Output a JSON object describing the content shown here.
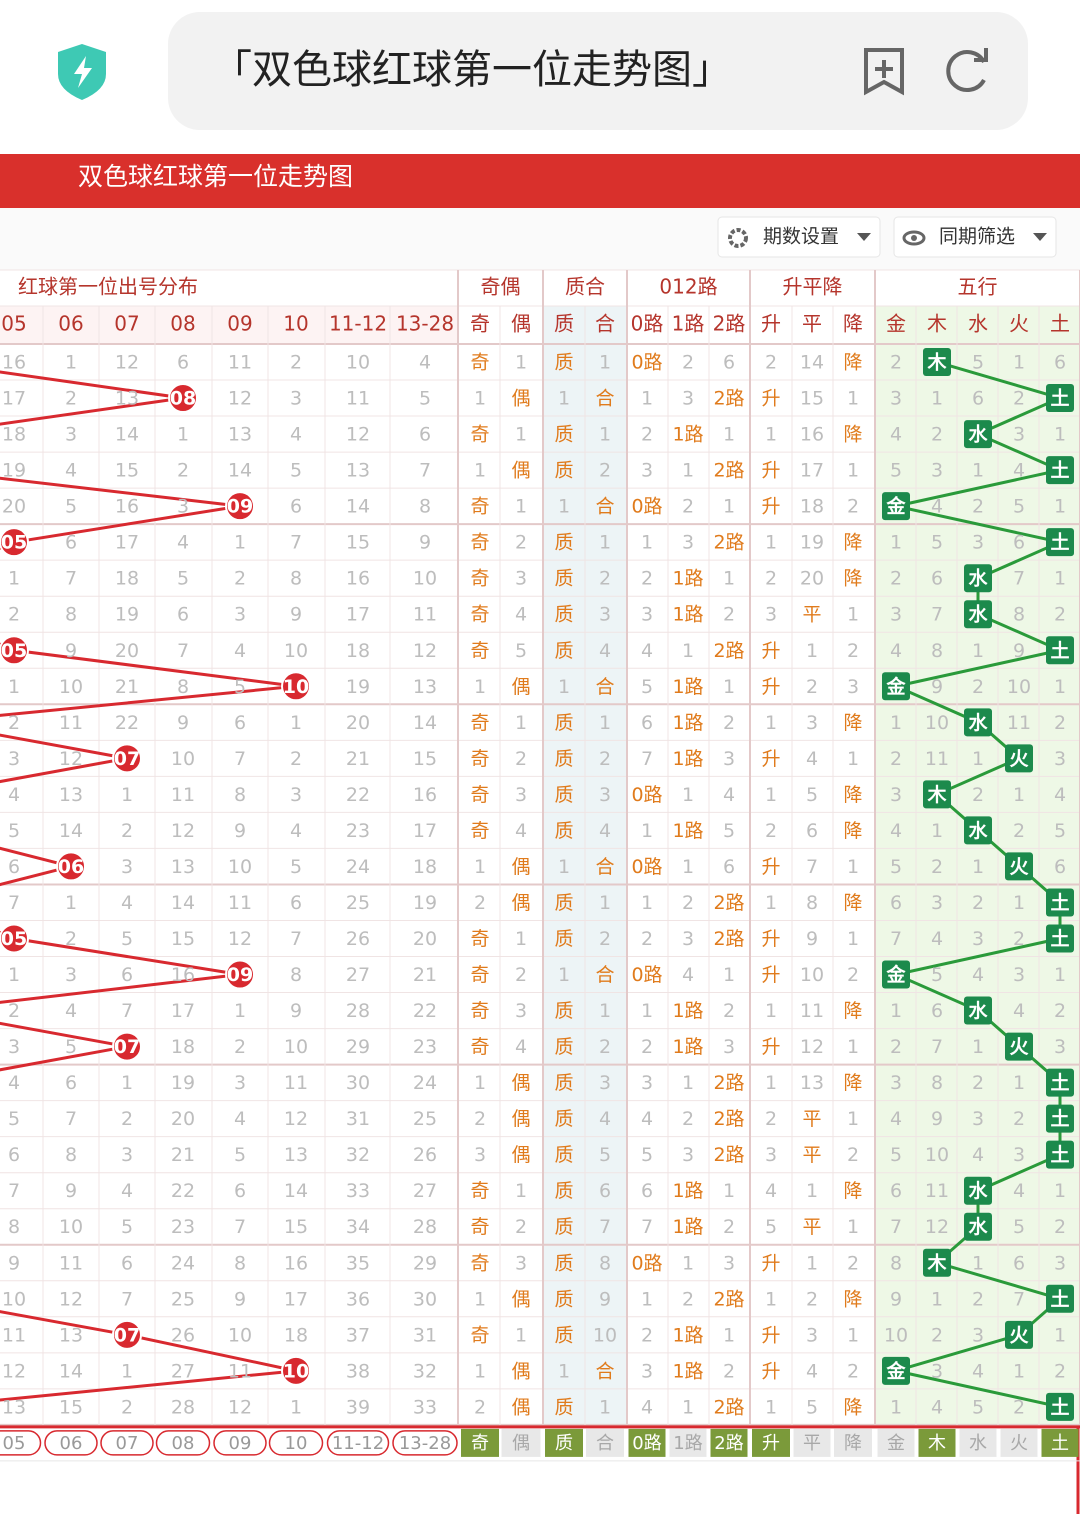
{
  "browser": {
    "address": "「双色球红球第一位走势图」"
  },
  "header": {
    "title": "双色球红球第一位走势图"
  },
  "toolbar": {
    "buttons": [
      "期数设置",
      "同期筛选"
    ]
  },
  "table": {
    "groups": [
      {
        "label": "红球第一位出号分布",
        "span": 8
      },
      {
        "label": "奇偶",
        "span": 2
      },
      {
        "label": "质合",
        "span": 2
      },
      {
        "label": "012路",
        "span": 3
      },
      {
        "label": "升平降",
        "span": 3
      },
      {
        "label": "五行",
        "span": 5
      }
    ],
    "columns": [
      "05",
      "06",
      "07",
      "08",
      "09",
      "10",
      "11-12",
      "13-28",
      "奇",
      "偶",
      "质",
      "合",
      "0路",
      "1路",
      "2路",
      "升",
      "平",
      "降",
      "金",
      "木",
      "水",
      "火",
      "土"
    ],
    "rows": [
      [
        "16",
        "1",
        "12",
        "6",
        "11",
        "2",
        "10",
        "4",
        "奇",
        "1",
        "质",
        "1",
        "0路",
        "2",
        "6",
        "2",
        "14",
        "降",
        "2",
        "木",
        "5",
        "1",
        "6"
      ],
      [
        "17",
        "2",
        "13",
        {
          "label": "08",
          "hit": true
        },
        "12",
        "3",
        "11",
        "5",
        "1",
        "偶",
        "1",
        "合",
        "1",
        "3",
        "2路",
        "升",
        "15",
        "1",
        "3",
        "1",
        "6",
        "2",
        "土"
      ],
      [
        "18",
        "3",
        "14",
        "1",
        "13",
        "4",
        "12",
        "6",
        "奇",
        "1",
        "质",
        "1",
        "2",
        "1路",
        "1",
        "1",
        "16",
        "降",
        "4",
        "2",
        "水",
        "3",
        "1"
      ],
      [
        "19",
        "4",
        "15",
        "2",
        "14",
        "5",
        "13",
        "7",
        "1",
        "偶",
        "质",
        "2",
        "3",
        "1",
        "2路",
        "升",
        "17",
        "1",
        "5",
        "3",
        "1",
        "4",
        "土"
      ],
      [
        "20",
        "5",
        "16",
        "3",
        {
          "label": "09",
          "hit": true
        },
        "6",
        "14",
        "8",
        "奇",
        "1",
        "1",
        "合",
        "0路",
        "2",
        "1",
        "升",
        "18",
        "2",
        "金",
        "4",
        "2",
        "5",
        "1"
      ],
      [
        {
          "label": "05",
          "hit": true
        },
        "6",
        "17",
        "4",
        "1",
        "7",
        "15",
        "9",
        "奇",
        "2",
        "质",
        "1",
        "1",
        "3",
        "2路",
        "1",
        "19",
        "降",
        "1",
        "5",
        "3",
        "6",
        "土"
      ],
      [
        "1",
        "7",
        "18",
        "5",
        "2",
        "8",
        "16",
        "10",
        "奇",
        "3",
        "质",
        "2",
        "2",
        "1路",
        "1",
        "2",
        "20",
        "降",
        "2",
        "6",
        "水",
        "7",
        "1"
      ],
      [
        "2",
        "8",
        "19",
        "6",
        "3",
        "9",
        "17",
        "11",
        "奇",
        "4",
        "质",
        "3",
        "3",
        "1路",
        "2",
        "3",
        "平",
        "1",
        "3",
        "7",
        "水",
        "8",
        "2"
      ],
      [
        {
          "label": "05",
          "hit": true
        },
        "9",
        "20",
        "7",
        "4",
        "10",
        "18",
        "12",
        "奇",
        "5",
        "质",
        "4",
        "4",
        "1",
        "2路",
        "升",
        "1",
        "2",
        "4",
        "8",
        "1",
        "9",
        "土"
      ],
      [
        "1",
        "10",
        "21",
        "8",
        "5",
        {
          "label": "10",
          "hit": true
        },
        "19",
        "13",
        "1",
        "偶",
        "1",
        "合",
        "5",
        "1路",
        "1",
        "升",
        "2",
        "3",
        "金",
        "9",
        "2",
        "10",
        "1"
      ],
      [
        "2",
        "11",
        "22",
        "9",
        "6",
        "1",
        "20",
        "14",
        "奇",
        "1",
        "质",
        "1",
        "6",
        "1路",
        "2",
        "1",
        "3",
        "降",
        "1",
        "10",
        "水",
        "11",
        "2"
      ],
      [
        "3",
        "12",
        {
          "label": "07",
          "hit": true
        },
        "10",
        "7",
        "2",
        "21",
        "15",
        "奇",
        "2",
        "质",
        "2",
        "7",
        "1路",
        "3",
        "升",
        "4",
        "1",
        "2",
        "11",
        "1",
        "火",
        "3"
      ],
      [
        "4",
        "13",
        "1",
        "11",
        "8",
        "3",
        "22",
        "16",
        "奇",
        "3",
        "质",
        "3",
        "0路",
        "1",
        "4",
        "1",
        "5",
        "降",
        "3",
        "木",
        "2",
        "1",
        "4"
      ],
      [
        "5",
        "14",
        "2",
        "12",
        "9",
        "4",
        "23",
        "17",
        "奇",
        "4",
        "质",
        "4",
        "1",
        "1路",
        "5",
        "2",
        "6",
        "降",
        "4",
        "1",
        "水",
        "2",
        "5"
      ],
      [
        "6",
        {
          "label": "06",
          "hit": true
        },
        "3",
        "13",
        "10",
        "5",
        "24",
        "18",
        "1",
        "偶",
        "1",
        "合",
        "0路",
        "1",
        "6",
        "升",
        "7",
        "1",
        "5",
        "2",
        "1",
        "火",
        "6"
      ],
      [
        "7",
        "1",
        "4",
        "14",
        "11",
        "6",
        "25",
        "19",
        "2",
        "偶",
        "质",
        "1",
        "1",
        "2",
        "2路",
        "1",
        "8",
        "降",
        "6",
        "3",
        "2",
        "1",
        "土"
      ],
      [
        {
          "label": "05",
          "hit": true
        },
        "2",
        "5",
        "15",
        "12",
        "7",
        "26",
        "20",
        "奇",
        "1",
        "质",
        "2",
        "2",
        "3",
        "2路",
        "升",
        "9",
        "1",
        "7",
        "4",
        "3",
        "2",
        "土"
      ],
      [
        "1",
        "3",
        "6",
        "16",
        {
          "label": "09",
          "hit": true
        },
        "8",
        "27",
        "21",
        "奇",
        "2",
        "1",
        "合",
        "0路",
        "4",
        "1",
        "升",
        "10",
        "2",
        "金",
        "5",
        "4",
        "3",
        "1"
      ],
      [
        "2",
        "4",
        "7",
        "17",
        "1",
        "9",
        "28",
        "22",
        "奇",
        "3",
        "质",
        "1",
        "1",
        "1路",
        "2",
        "1",
        "11",
        "降",
        "1",
        "6",
        "水",
        "4",
        "2"
      ],
      [
        "3",
        "5",
        {
          "label": "07",
          "hit": true
        },
        "18",
        "2",
        "10",
        "29",
        "23",
        "奇",
        "4",
        "质",
        "2",
        "2",
        "1路",
        "3",
        "升",
        "12",
        "1",
        "2",
        "7",
        "1",
        "火",
        "3"
      ],
      [
        "4",
        "6",
        "1",
        "19",
        "3",
        "11",
        "30",
        "24",
        "1",
        "偶",
        "质",
        "3",
        "3",
        "1",
        "2路",
        "1",
        "13",
        "降",
        "3",
        "8",
        "2",
        "1",
        "土"
      ],
      [
        "5",
        "7",
        "2",
        "20",
        "4",
        "12",
        "31",
        "25",
        "2",
        "偶",
        "质",
        "4",
        "4",
        "2",
        "2路",
        "2",
        "平",
        "1",
        "4",
        "9",
        "3",
        "2",
        "土"
      ],
      [
        "6",
        "8",
        "3",
        "21",
        "5",
        "13",
        "32",
        "26",
        "3",
        "偶",
        "质",
        "5",
        "5",
        "3",
        "2路",
        "3",
        "平",
        "2",
        "5",
        "10",
        "4",
        "3",
        "土"
      ],
      [
        "7",
        "9",
        "4",
        "22",
        "6",
        "14",
        "33",
        "27",
        "奇",
        "1",
        "质",
        "6",
        "6",
        "1路",
        "1",
        "4",
        "1",
        "降",
        "6",
        "11",
        "水",
        "4",
        "1"
      ],
      [
        "8",
        "10",
        "5",
        "23",
        "7",
        "15",
        "34",
        "28",
        "奇",
        "2",
        "质",
        "7",
        "7",
        "1路",
        "2",
        "5",
        "平",
        "1",
        "7",
        "12",
        "水",
        "5",
        "2"
      ],
      [
        "9",
        "11",
        "6",
        "24",
        "8",
        "16",
        "35",
        "29",
        "奇",
        "3",
        "质",
        "8",
        "0路",
        "1",
        "3",
        "升",
        "1",
        "2",
        "8",
        "木",
        "1",
        "6",
        "3"
      ],
      [
        "10",
        "12",
        "7",
        "25",
        "9",
        "17",
        "36",
        "30",
        "1",
        "偶",
        "质",
        "9",
        "1",
        "2",
        "2路",
        "1",
        "2",
        "降",
        "9",
        "1",
        "2",
        "7",
        "土"
      ],
      [
        "11",
        "13",
        {
          "label": "07",
          "hit": true
        },
        "26",
        "10",
        "18",
        "37",
        "31",
        "奇",
        "1",
        "质",
        "10",
        "2",
        "1路",
        "1",
        "升",
        "3",
        "1",
        "10",
        "2",
        "3",
        "火",
        "1"
      ],
      [
        "12",
        "14",
        "1",
        "27",
        "11",
        {
          "label": "10",
          "hit": true
        },
        "38",
        "32",
        "1",
        "偶",
        "1",
        "合",
        "3",
        "1路",
        "2",
        "升",
        "4",
        "2",
        "金",
        "3",
        "4",
        "1",
        "2"
      ],
      [
        "13",
        "15",
        "2",
        "28",
        "12",
        "1",
        "39",
        "33",
        "2",
        "偶",
        "质",
        "1",
        "4",
        "1",
        "2路",
        "1",
        "5",
        "降",
        "1",
        "4",
        "5",
        "2",
        "土"
      ]
    ],
    "footer": [
      {
        "label": "05"
      },
      {
        "label": "06"
      },
      {
        "label": "07"
      },
      {
        "label": "08"
      },
      {
        "label": "09"
      },
      {
        "label": "10"
      },
      {
        "label": "11-12"
      },
      {
        "label": "13-28"
      },
      {
        "label": "奇",
        "selected": true
      },
      {
        "label": "偶",
        "selected": false
      },
      {
        "label": "质",
        "selected": true
      },
      {
        "label": "合",
        "selected": false
      },
      {
        "label": "0路",
        "selected": true
      },
      {
        "label": "1路",
        "selected": false
      },
      {
        "label": "2路",
        "selected": true
      },
      {
        "label": "升",
        "selected": true
      },
      {
        "label": "平",
        "selected": false
      },
      {
        "label": "降",
        "selected": false
      },
      {
        "label": "金",
        "selected": false
      },
      {
        "label": "木",
        "selected": true
      },
      {
        "label": "水",
        "selected": false
      },
      {
        "label": "火",
        "selected": false
      },
      {
        "label": "土",
        "selected": true
      }
    ]
  }
}
